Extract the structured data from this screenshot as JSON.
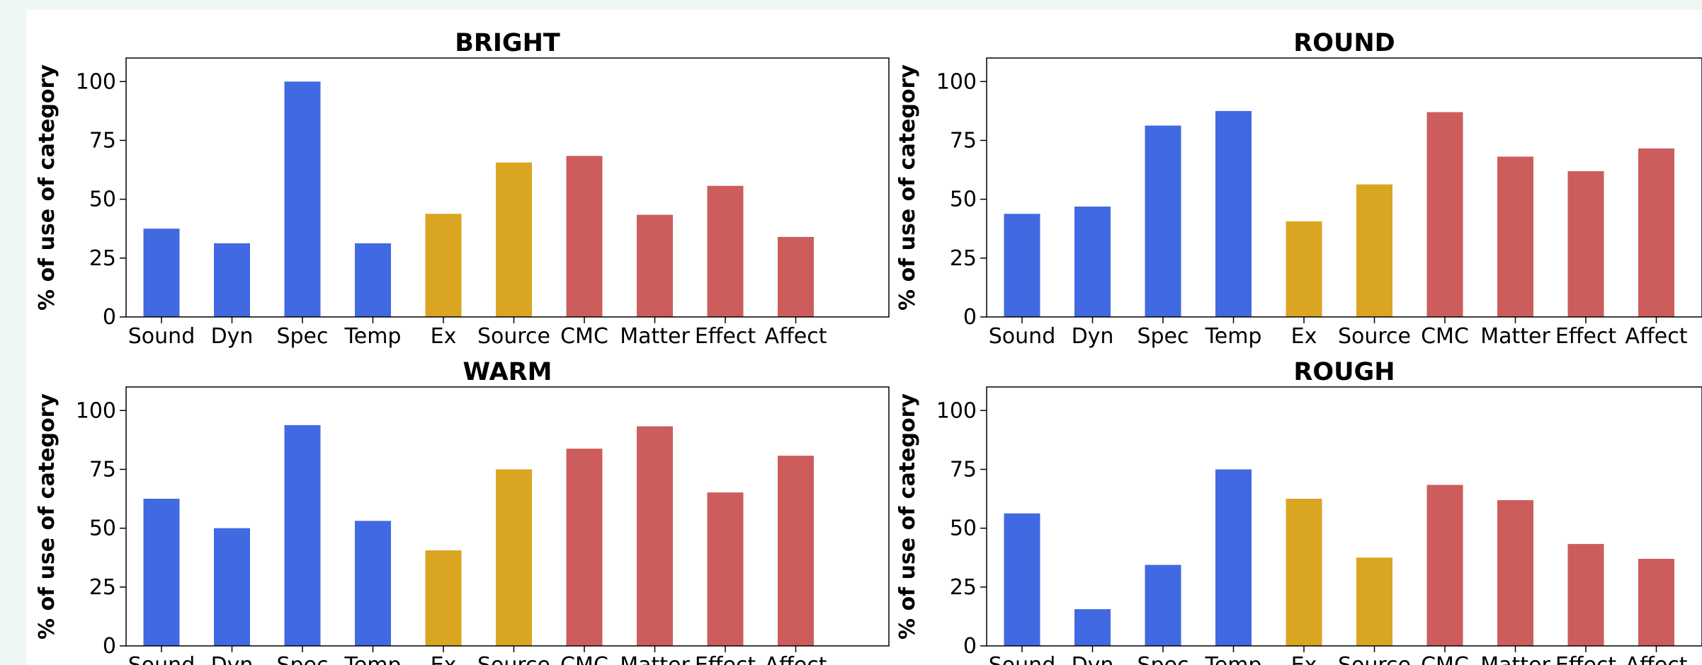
{
  "colors": {
    "blue": "#4169e1",
    "gold": "#daa520",
    "red": "#cd5c5c",
    "background": "#eef7f1"
  },
  "chart_data": [
    {
      "type": "bar",
      "title": "BRIGHT",
      "ylabel": "% of use of category",
      "ylim": [
        0,
        110
      ],
      "yticks": [
        0,
        25,
        50,
        75,
        100
      ],
      "categories": [
        "Sound",
        "Dyn",
        "Spec",
        "Temp",
        "Ex",
        "Source",
        "CMC",
        "Matter",
        "Effect",
        "Affect"
      ],
      "values": [
        37.5,
        31.3,
        100,
        31.3,
        43.8,
        65.6,
        68.4,
        43.4,
        55.7,
        34.0
      ],
      "bar_colors": [
        "blue",
        "blue",
        "blue",
        "blue",
        "gold",
        "gold",
        "red",
        "red",
        "red",
        "red"
      ],
      "grid": false,
      "legend": "none"
    },
    {
      "type": "bar",
      "title": "ROUND",
      "ylabel": "% of use of category",
      "ylim": [
        0,
        110
      ],
      "yticks": [
        0,
        25,
        50,
        75,
        100
      ],
      "categories": [
        "Sound",
        "Dyn",
        "Spec",
        "Temp",
        "Ex",
        "Source",
        "CMC",
        "Matter",
        "Effect",
        "Affect"
      ],
      "values": [
        43.8,
        46.9,
        81.3,
        87.5,
        40.6,
        56.3,
        87.0,
        68.1,
        61.9,
        71.6
      ],
      "bar_colors": [
        "blue",
        "blue",
        "blue",
        "blue",
        "gold",
        "gold",
        "red",
        "red",
        "red",
        "red"
      ],
      "grid": false,
      "legend": "none"
    },
    {
      "type": "bar",
      "title": "WARM",
      "ylabel": "% of use of category",
      "ylim": [
        0,
        110
      ],
      "yticks": [
        0,
        25,
        50,
        75,
        100
      ],
      "categories": [
        "Sound",
        "Dyn",
        "Spec",
        "Temp",
        "Ex",
        "Source",
        "CMC",
        "Matter",
        "Effect",
        "Affect"
      ],
      "values": [
        62.5,
        50.0,
        93.8,
        53.1,
        40.6,
        75.0,
        83.8,
        93.3,
        65.2,
        80.8
      ],
      "bar_colors": [
        "blue",
        "blue",
        "blue",
        "blue",
        "gold",
        "gold",
        "red",
        "red",
        "red",
        "red"
      ],
      "grid": false,
      "legend": "none"
    },
    {
      "type": "bar",
      "title": "ROUGH",
      "ylabel": "% of use of category",
      "ylim": [
        0,
        110
      ],
      "yticks": [
        0,
        25,
        50,
        75,
        100
      ],
      "categories": [
        "Sound",
        "Dyn",
        "Spec",
        "Temp",
        "Ex",
        "Source",
        "CMC",
        "Matter",
        "Effect",
        "Affect"
      ],
      "values": [
        56.3,
        15.6,
        34.4,
        75.0,
        62.5,
        37.5,
        68.4,
        61.9,
        43.3,
        37.0
      ],
      "bar_colors": [
        "blue",
        "blue",
        "blue",
        "blue",
        "gold",
        "gold",
        "red",
        "red",
        "red",
        "red"
      ],
      "grid": false,
      "legend": "none"
    }
  ]
}
